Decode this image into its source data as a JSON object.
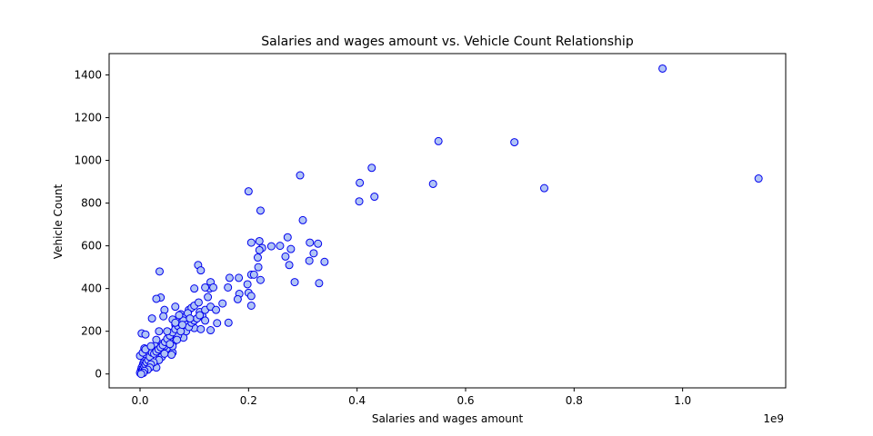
{
  "chart_data": {
    "type": "scatter",
    "title": "Salaries and wages amount vs. Vehicle Count Relationship",
    "xlabel": "Salaries and wages amount",
    "ylabel": "Vehicle Count",
    "x_offset_text": "1e9",
    "xlim": [
      -0.057,
      1.19
    ],
    "ylim": [
      -65,
      1500
    ],
    "x_ticks": [
      0.0,
      0.2,
      0.4,
      0.6,
      0.8,
      1.0
    ],
    "x_tick_labels": [
      "0.0",
      "0.2",
      "0.4",
      "0.6",
      "0.8",
      "1.0"
    ],
    "y_ticks": [
      0,
      200,
      400,
      600,
      800,
      1000,
      1200,
      1400
    ],
    "y_tick_labels": [
      "0",
      "200",
      "400",
      "600",
      "800",
      "1000",
      "1200",
      "1400"
    ],
    "grid": false,
    "marker_face_color": "#b0c4f5",
    "marker_edge_color": "#0000ee",
    "points": [
      [
        0.963,
        1430
      ],
      [
        1.14,
        915
      ],
      [
        0.55,
        1090
      ],
      [
        0.69,
        1085
      ],
      [
        0.745,
        870
      ],
      [
        0.54,
        890
      ],
      [
        0.427,
        965
      ],
      [
        0.405,
        895
      ],
      [
        0.432,
        830
      ],
      [
        0.404,
        808
      ],
      [
        0.295,
        930
      ],
      [
        0.2,
        855
      ],
      [
        0.222,
        765
      ],
      [
        0.3,
        720
      ],
      [
        0.34,
        525
      ],
      [
        0.33,
        425
      ],
      [
        0.285,
        430
      ],
      [
        0.312,
        530
      ],
      [
        0.313,
        615
      ],
      [
        0.328,
        610
      ],
      [
        0.32,
        565
      ],
      [
        0.272,
        640
      ],
      [
        0.268,
        550
      ],
      [
        0.278,
        585
      ],
      [
        0.275,
        510
      ],
      [
        0.258,
        600
      ],
      [
        0.242,
        598
      ],
      [
        0.225,
        590
      ],
      [
        0.22,
        580
      ],
      [
        0.205,
        615
      ],
      [
        0.22,
        622
      ],
      [
        0.217,
        545
      ],
      [
        0.218,
        500
      ],
      [
        0.205,
        465
      ],
      [
        0.21,
        465
      ],
      [
        0.222,
        440
      ],
      [
        0.182,
        450
      ],
      [
        0.165,
        450
      ],
      [
        0.162,
        405
      ],
      [
        0.152,
        330
      ],
      [
        0.183,
        375
      ],
      [
        0.18,
        350
      ],
      [
        0.198,
        420
      ],
      [
        0.2,
        380
      ],
      [
        0.205,
        365
      ],
      [
        0.205,
        320
      ],
      [
        0.163,
        240
      ],
      [
        0.142,
        238
      ],
      [
        0.13,
        205
      ],
      [
        0.13,
        430
      ],
      [
        0.128,
        400
      ],
      [
        0.135,
        405
      ],
      [
        0.12,
        405
      ],
      [
        0.125,
        360
      ],
      [
        0.107,
        510
      ],
      [
        0.112,
        485
      ],
      [
        0.1,
        400
      ],
      [
        0.036,
        480
      ],
      [
        0.038,
        358
      ],
      [
        0.03,
        352
      ],
      [
        0.045,
        300
      ],
      [
        0.043,
        270
      ],
      [
        0.022,
        260
      ],
      [
        0.003,
        190
      ],
      [
        0.01,
        185
      ],
      [
        0.06,
        255
      ],
      [
        0.065,
        230
      ],
      [
        0.065,
        315
      ],
      [
        0.075,
        280
      ],
      [
        0.085,
        270
      ],
      [
        0.09,
        300
      ],
      [
        0.095,
        310
      ],
      [
        0.1,
        320
      ],
      [
        0.108,
        335
      ],
      [
        0.11,
        290
      ],
      [
        0.115,
        270
      ],
      [
        0.12,
        250
      ],
      [
        0.12,
        300
      ],
      [
        0.13,
        315
      ],
      [
        0.14,
        300
      ],
      [
        0.1,
        215
      ],
      [
        0.112,
        210
      ],
      [
        0.08,
        170
      ],
      [
        0.085,
        200
      ],
      [
        0.07,
        180
      ],
      [
        0.062,
        150
      ],
      [
        0.055,
        170
      ],
      [
        0.05,
        120
      ],
      [
        0.045,
        130
      ],
      [
        0.04,
        140
      ],
      [
        0.035,
        200
      ],
      [
        0.03,
        160
      ],
      [
        0.028,
        130
      ],
      [
        0.025,
        110
      ],
      [
        0.02,
        90
      ],
      [
        0.015,
        70
      ],
      [
        0.012,
        110
      ],
      [
        0.01,
        90
      ],
      [
        0.008,
        60
      ],
      [
        0.006,
        50
      ],
      [
        0.005,
        40
      ],
      [
        0.003,
        30
      ],
      [
        0.002,
        20
      ],
      [
        0.001,
        10
      ],
      [
        0.0,
        5
      ],
      [
        0.004,
        15
      ],
      [
        0.006,
        25
      ],
      [
        0.008,
        35
      ],
      [
        0.01,
        45
      ],
      [
        0.012,
        55
      ],
      [
        0.015,
        65
      ],
      [
        0.018,
        80
      ],
      [
        0.022,
        100
      ],
      [
        0.026,
        95
      ],
      [
        0.03,
        105
      ],
      [
        0.034,
        115
      ],
      [
        0.038,
        125
      ],
      [
        0.042,
        135
      ],
      [
        0.046,
        150
      ],
      [
        0.05,
        165
      ],
      [
        0.055,
        180
      ],
      [
        0.06,
        195
      ],
      [
        0.065,
        210
      ],
      [
        0.07,
        225
      ],
      [
        0.075,
        240
      ],
      [
        0.08,
        250
      ],
      [
        0.085,
        230
      ],
      [
        0.09,
        220
      ],
      [
        0.095,
        240
      ],
      [
        0.1,
        250
      ],
      [
        0.105,
        260
      ],
      [
        0.06,
        100
      ],
      [
        0.06,
        130
      ],
      [
        0.058,
        90
      ],
      [
        0.04,
        80
      ],
      [
        0.035,
        65
      ],
      [
        0.03,
        30
      ],
      [
        0.025,
        55
      ],
      [
        0.02,
        45
      ],
      [
        0.018,
        30
      ],
      [
        0.014,
        20
      ],
      [
        0.008,
        15
      ],
      [
        0.006,
        5
      ],
      [
        0.002,
        0
      ],
      [
        0.0,
        85
      ],
      [
        0.005,
        100
      ],
      [
        0.008,
        120
      ],
      [
        0.01,
        115
      ],
      [
        0.05,
        200
      ],
      [
        0.065,
        240
      ],
      [
        0.075,
        200
      ],
      [
        0.072,
        275
      ],
      [
        0.088,
        285
      ],
      [
        0.092,
        260
      ],
      [
        0.02,
        130
      ],
      [
        0.045,
        95
      ],
      [
        0.055,
        140
      ],
      [
        0.068,
        160
      ],
      [
        0.078,
        230
      ],
      [
        0.11,
        275
      ]
    ]
  }
}
